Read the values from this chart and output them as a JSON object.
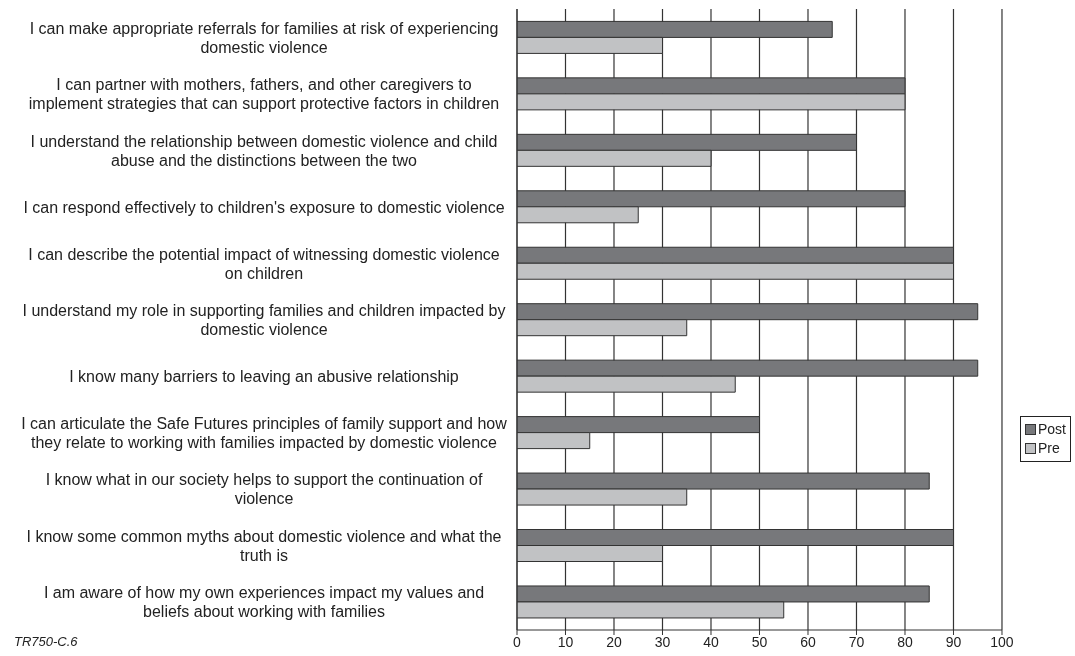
{
  "chart_data": {
    "type": "bar",
    "orientation": "horizontal",
    "categories": [
      "I can make appropriate referrals for families at risk of experiencing domestic violence",
      "I can partner with mothers, fathers, and other caregivers to implement strategies that can support protective factors in children",
      "I understand the relationship between domestic violence and child abuse and the distinctions between the two",
      "I can respond effectively to children's exposure to domestic violence",
      "I can describe the potential impact of witnessing domestic violence on children",
      "I understand my role in supporting families and children impacted by domestic violence",
      "I know many barriers to leaving an abusive relationship",
      "I can articulate the Safe Futures principles of family support and how they relate to working with families impacted by domestic violence",
      "I know what in our society helps to support the continuation of violence",
      "I know some common myths about domestic violence and what the truth is",
      "I am aware of how my own experiences impact my values and beliefs about working with families"
    ],
    "series": [
      {
        "name": "Post",
        "color": "#77787b",
        "values": [
          65,
          80,
          70,
          80,
          90,
          95,
          95,
          50,
          85,
          90,
          85
        ]
      },
      {
        "name": "Pre",
        "color": "#c1c2c4",
        "values": [
          30,
          80,
          40,
          25,
          90,
          35,
          45,
          15,
          35,
          30,
          55
        ]
      }
    ],
    "xlim": [
      0,
      100
    ],
    "xticks": [
      0,
      10,
      20,
      30,
      40,
      50,
      60,
      70,
      80,
      90,
      100
    ],
    "grid": "x",
    "legend": "right",
    "annotations": [
      "TR750-C.6"
    ]
  }
}
